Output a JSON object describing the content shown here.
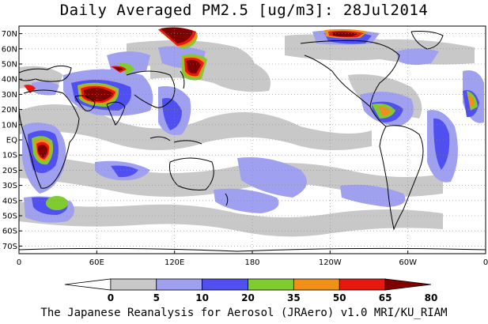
{
  "title": "Daily Averaged PM2.5 [ug/m3]: 28Jul2014",
  "footer": "The Japanese Reanalysis for Aerosol (JRAero) v1.0 MRI/KU_RIAM",
  "map": {
    "lon_range": [
      0,
      360
    ],
    "lat_range": [
      -75,
      75
    ],
    "lat_labels": [
      "70N",
      "60N",
      "50N",
      "40N",
      "30N",
      "20N",
      "10N",
      "EQ",
      "10S",
      "20S",
      "30S",
      "40S",
      "50S",
      "60S",
      "70S"
    ],
    "lon_labels": [
      "0",
      "60E",
      "120E",
      "180",
      "120W",
      "60W",
      "0"
    ],
    "gridlines": "dotted",
    "coastline_color": "#000000"
  },
  "colorbar": {
    "levels": [
      "0",
      "5",
      "10",
      "20",
      "35",
      "50",
      "65",
      "80"
    ],
    "colors": [
      "#ffffff",
      "#c8c8c8",
      "#a0a0f0",
      "#5050f0",
      "#80cc30",
      "#f09018",
      "#e81810",
      "#800000"
    ],
    "units": "ug/m3"
  }
}
